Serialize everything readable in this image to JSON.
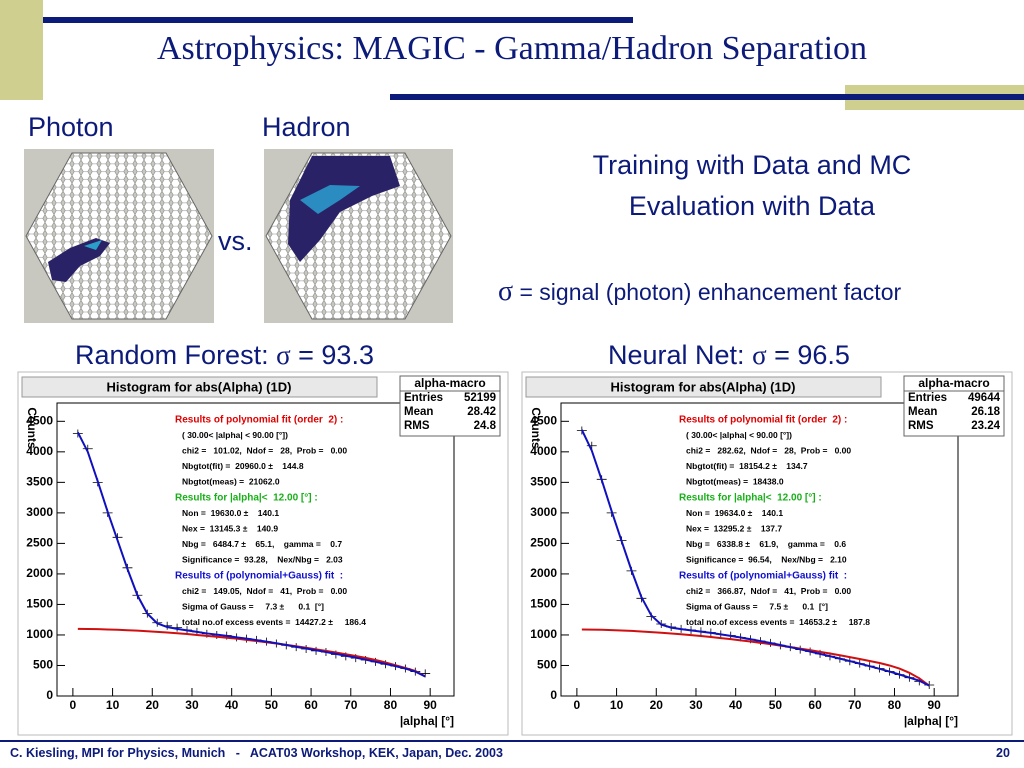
{
  "slide": {
    "title": "Astrophysics: MAGIC - Gamma/Hadron Separation",
    "photon": "Photon",
    "hadron": "Hadron",
    "vs": "vs.",
    "training": "Training with Data and MC",
    "evaluation": "Evaluation with Data",
    "sigma": "σ",
    "sigma_def": " = signal (photon) enhancement factor",
    "rf_label": "Random Forest: ",
    "rf_value": " = 93.3",
    "nn_label": "Neural Net: ",
    "nn_value": " = 96.5",
    "footer": "C. Kiesling, MPI for Physics, Munich   -   ACAT03 Workshop, KEK, Japan, Dec. 2003",
    "page": "20"
  },
  "chart_data": [
    {
      "type": "line",
      "title": "Histogram for abs(Alpha) (1D)",
      "x_label": "|alpha|  [°]",
      "y_label": "Counts",
      "stats": {
        "title": "alpha-macro",
        "rows": [
          [
            "Entries",
            "52199"
          ],
          [
            "Mean",
            "28.42"
          ],
          [
            "RMS",
            "24.8"
          ]
        ]
      },
      "annotations": [
        {
          "text": "Results of polynomial fit (order  2) :",
          "color": "#e00000"
        },
        {
          "text": "( 30.00< |alpha| < 90.00 [°])"
        },
        {
          "text": "chi2 =   101.02,  Ndof =   28,  Prob =   0.00"
        },
        {
          "text": "Nbgtot(fit) =  20960.0 ±    144.8"
        },
        {
          "text": "Nbgtot(meas) =  21062.0"
        },
        {
          "text": "Results for |alpha|<  12.00 [°] :",
          "color": "#18b018"
        },
        {
          "text": "Non =  19630.0 ±    140.1"
        },
        {
          "text": "Nex =  13145.3 ±    140.9"
        },
        {
          "text": "Nbg =   6484.7 ±    65.1,    gamma =    0.7"
        },
        {
          "text": "Significance =  93.28,    Nex/Nbg =   2.03"
        },
        {
          "text": "Results of (polynomial+Gauss) fit  :",
          "color": "#1010d0"
        },
        {
          "text": "chi2 =   149.05,  Ndof =   41,  Prob =   0.00"
        },
        {
          "text": "Sigma of Gauss =     7.3 ±      0.1  [°]"
        },
        {
          "text": "total no.of excess events =  14427.2 ±     186.4"
        }
      ],
      "x": [
        1.25,
        3.75,
        6.25,
        8.75,
        11.25,
        13.75,
        16.25,
        18.75,
        21.25,
        23.75,
        26.25,
        28.75,
        31.25,
        33.75,
        36.25,
        38.75,
        41.25,
        43.75,
        46.25,
        48.75,
        51.25,
        53.75,
        56.25,
        58.75,
        61.25,
        63.75,
        66.25,
        68.75,
        71.25,
        73.75,
        76.25,
        78.75,
        81.25,
        83.75,
        86.25,
        88.75
      ],
      "series": [
        {
          "style": "cross",
          "color": "#000000",
          "values": [
            4300,
            4050,
            3500,
            3000,
            2600,
            2100,
            1650,
            1350,
            1200,
            1150,
            1120,
            1080,
            1050,
            1020,
            1000,
            990,
            960,
            940,
            920,
            890,
            860,
            830,
            800,
            770,
            740,
            720,
            680,
            650,
            620,
            590,
            560,
            520,
            490,
            450,
            400,
            370
          ]
        },
        {
          "style": "line",
          "color": "#d01010",
          "values": [
            1100,
            1098,
            1095,
            1090,
            1085,
            1078,
            1070,
            1060,
            1050,
            1040,
            1028,
            1015,
            1000,
            985,
            970,
            955,
            940,
            920,
            900,
            880,
            860,
            838,
            815,
            790,
            765,
            740,
            712,
            685,
            655,
            625,
            590,
            550,
            505,
            460,
            410,
            320
          ]
        },
        {
          "style": "line",
          "color": "#1010c0",
          "values": [
            4320,
            4000,
            3520,
            3020,
            2550,
            2080,
            1650,
            1350,
            1190,
            1130,
            1100,
            1075,
            1050,
            1025,
            1005,
            985,
            960,
            940,
            915,
            890,
            865,
            835,
            805,
            778,
            750,
            720,
            690,
            660,
            628,
            595,
            560,
            525,
            488,
            450,
            400,
            320
          ]
        }
      ],
      "xlim": [
        -4,
        96
      ],
      "ylim": [
        0,
        4800
      ],
      "xticks": [
        0,
        10,
        20,
        30,
        40,
        50,
        60,
        70,
        80,
        90
      ],
      "yticks": [
        0,
        500,
        1000,
        1500,
        2000,
        2500,
        3000,
        3500,
        4000,
        4500
      ]
    },
    {
      "type": "line",
      "title": "Histogram for abs(Alpha) (1D)",
      "x_label": "|alpha|  [°]",
      "y_label": "Counts",
      "stats": {
        "title": "alpha-macro",
        "rows": [
          [
            "Entries",
            "49644"
          ],
          [
            "Mean",
            "26.18"
          ],
          [
            "RMS",
            "23.24"
          ]
        ]
      },
      "annotations": [
        {
          "text": "Results of polynomial fit (order  2) :",
          "color": "#e00000"
        },
        {
          "text": "( 30.00< |alpha| < 90.00 [°])"
        },
        {
          "text": "chi2 =   282.62,  Ndof =   28,  Prob =   0.00"
        },
        {
          "text": "Nbgtot(fit) =  18154.2 ±    134.7"
        },
        {
          "text": "Nbgtot(meas) =  18438.0"
        },
        {
          "text": "Results for |alpha|<  12.00 [°] :",
          "color": "#18b018"
        },
        {
          "text": "Non =  19634.0 ±    140.1"
        },
        {
          "text": "Nex =  13295.2 ±    137.7"
        },
        {
          "text": "Nbg =   6338.8 ±    61.9,    gamma =    0.6"
        },
        {
          "text": "Significance =  96.54,    Nex/Nbg =   2.10"
        },
        {
          "text": "Results of (polynomial+Gauss) fit  :",
          "color": "#1010d0"
        },
        {
          "text": "chi2 =   366.87,  Ndof =   41,  Prob =   0.00"
        },
        {
          "text": "Sigma of Gauss =     7.5 ±      0.1  [°]"
        },
        {
          "text": "total no.of excess events =  14653.2 ±     187.8"
        }
      ],
      "x": [
        1.25,
        3.75,
        6.25,
        8.75,
        11.25,
        13.75,
        16.25,
        18.75,
        21.25,
        23.75,
        26.25,
        28.75,
        31.25,
        33.75,
        36.25,
        38.75,
        41.25,
        43.75,
        46.25,
        48.75,
        51.25,
        53.75,
        56.25,
        58.75,
        61.25,
        63.75,
        66.25,
        68.75,
        71.25,
        73.75,
        76.25,
        78.75,
        81.25,
        83.75,
        86.25,
        88.75
      ],
      "series": [
        {
          "style": "cross",
          "color": "#000000",
          "values": [
            4350,
            4100,
            3550,
            3000,
            2550,
            2050,
            1600,
            1300,
            1180,
            1130,
            1100,
            1080,
            1060,
            1040,
            1010,
            990,
            960,
            930,
            900,
            870,
            830,
            800,
            760,
            730,
            690,
            650,
            610,
            570,
            530,
            490,
            450,
            400,
            350,
            300,
            240,
            180
          ]
        },
        {
          "style": "line",
          "color": "#d01010",
          "values": [
            1090,
            1088,
            1085,
            1080,
            1074,
            1066,
            1057,
            1047,
            1036,
            1024,
            1011,
            997,
            982,
            966,
            949,
            931,
            912,
            892,
            871,
            849,
            826,
            802,
            777,
            751,
            724,
            696,
            667,
            637,
            606,
            574,
            541,
            500,
            450,
            380,
            290,
            170
          ]
        },
        {
          "style": "line",
          "color": "#1010c0",
          "values": [
            4360,
            4020,
            3540,
            3030,
            2540,
            2060,
            1620,
            1320,
            1170,
            1120,
            1095,
            1075,
            1055,
            1035,
            1010,
            985,
            958,
            930,
            900,
            868,
            835,
            800,
            765,
            728,
            690,
            652,
            612,
            572,
            530,
            488,
            445,
            400,
            352,
            302,
            250,
            170
          ]
        }
      ],
      "xlim": [
        -4,
        96
      ],
      "ylim": [
        0,
        4800
      ],
      "xticks": [
        0,
        10,
        20,
        30,
        40,
        50,
        60,
        70,
        80,
        90
      ],
      "yticks": [
        0,
        500,
        1000,
        1500,
        2000,
        2500,
        3000,
        3500,
        4000,
        4500
      ]
    }
  ]
}
